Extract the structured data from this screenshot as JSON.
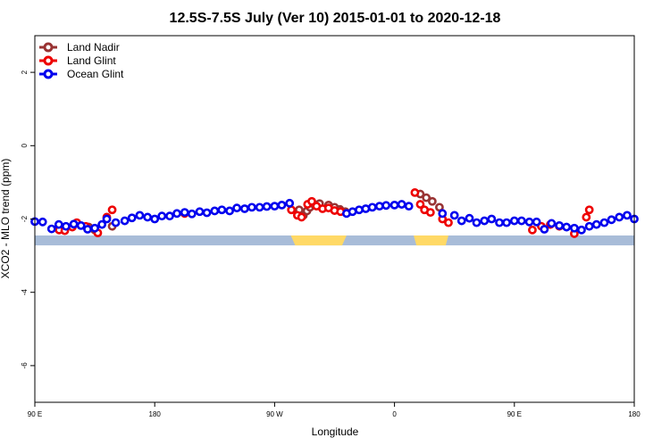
{
  "chart_data": {
    "type": "scatter",
    "title": "12.5S-7.5S July (Ver 10)   2015-01-01 to 2020-12-18",
    "xlabel": "Longitude",
    "ylabel": "XCO2 - MLO trend (ppm)",
    "xlim": [
      0,
      1
    ],
    "ylim": [
      -7,
      3
    ],
    "x_ticks": [
      {
        "pos": 0.0,
        "label": "90 E"
      },
      {
        "pos": 0.2,
        "label": "180"
      },
      {
        "pos": 0.4,
        "label": "90 W"
      },
      {
        "pos": 0.6,
        "label": "0"
      },
      {
        "pos": 0.8,
        "label": "90 E"
      },
      {
        "pos": 1.0,
        "label": "180"
      }
    ],
    "y_ticks": [
      {
        "value": 2,
        "label": "2"
      },
      {
        "value": 0,
        "label": "0"
      },
      {
        "value": -2,
        "label": "-2"
      },
      {
        "value": -4,
        "label": "-4"
      },
      {
        "value": -6,
        "label": "-6"
      }
    ],
    "legend": [
      {
        "name": "Land Nadir",
        "color": "#993333"
      },
      {
        "name": "Land Glint",
        "color": "#ee0000"
      },
      {
        "name": "Ocean Glint",
        "color": "#0000ee"
      }
    ],
    "map_strip": {
      "y_top": -2.45,
      "y_bottom": -2.72,
      "ocean_color": "#a8bcd8",
      "land_color": "#ffd966",
      "land_segments": [
        [
          0.427,
          0.52
        ],
        [
          0.632,
          0.69
        ]
      ]
    },
    "series": [
      {
        "name": "Land Nadir",
        "color": "#993333",
        "x": [
          0.441,
          0.448,
          0.454,
          0.459,
          0.467,
          0.475,
          0.49,
          0.5,
          0.509,
          0.518,
          0.643,
          0.653,
          0.663,
          0.675,
          0.09,
          0.1,
          0.129
        ],
        "y": [
          -1.75,
          -1.9,
          -1.78,
          -1.68,
          -1.62,
          -1.58,
          -1.62,
          -1.68,
          -1.74,
          -1.8,
          -1.32,
          -1.42,
          -1.52,
          -1.68,
          -2.22,
          -2.3,
          -2.2
        ]
      },
      {
        "name": "Land Glint",
        "color": "#ee0000",
        "x": [
          0.0406,
          0.05,
          0.0625,
          0.07,
          0.085,
          0.105,
          0.12,
          0.129,
          0.25,
          0.428,
          0.438,
          0.445,
          0.455,
          0.462,
          0.47,
          0.48,
          0.49,
          0.5,
          0.51,
          0.634,
          0.643,
          0.65,
          0.66,
          0.68,
          0.69,
          0.83,
          0.845,
          0.86,
          0.875,
          0.9,
          0.92,
          0.925
        ],
        "y": [
          -2.3,
          -2.32,
          -2.22,
          -2.1,
          -2.2,
          -2.38,
          -1.95,
          -1.75,
          -1.85,
          -1.75,
          -1.9,
          -1.95,
          -1.6,
          -1.52,
          -1.65,
          -1.72,
          -1.7,
          -1.77,
          -1.8,
          -1.28,
          -1.6,
          -1.75,
          -1.82,
          -2.0,
          -2.1,
          -2.3,
          -2.2,
          -2.15,
          -2.2,
          -2.4,
          -1.95,
          -1.75
        ]
      },
      {
        "name": "Ocean Glint",
        "color": "#0000ee",
        "x": [
          0.0,
          0.013,
          0.028,
          0.04,
          0.052,
          0.065,
          0.077,
          0.088,
          0.1,
          0.112,
          0.12,
          0.135,
          0.15,
          0.162,
          0.175,
          0.188,
          0.2,
          0.212,
          0.225,
          0.237,
          0.25,
          0.262,
          0.275,
          0.287,
          0.3,
          0.312,
          0.325,
          0.337,
          0.35,
          0.362,
          0.375,
          0.387,
          0.4,
          0.412,
          0.425,
          0.52,
          0.53,
          0.541,
          0.552,
          0.563,
          0.575,
          0.586,
          0.6,
          0.612,
          0.624,
          0.68,
          0.7,
          0.712,
          0.725,
          0.737,
          0.75,
          0.762,
          0.775,
          0.787,
          0.8,
          0.812,
          0.825,
          0.837,
          0.85,
          0.862,
          0.875,
          0.887,
          0.9,
          0.912,
          0.925,
          0.937,
          0.95,
          0.962,
          0.975,
          0.988,
          1.0
        ],
        "y": [
          -2.07,
          -2.08,
          -2.27,
          -2.15,
          -2.2,
          -2.14,
          -2.18,
          -2.28,
          -2.25,
          -2.15,
          -2.0,
          -2.1,
          -2.05,
          -1.97,
          -1.9,
          -1.95,
          -2.0,
          -1.92,
          -1.92,
          -1.85,
          -1.82,
          -1.86,
          -1.8,
          -1.83,
          -1.78,
          -1.75,
          -1.78,
          -1.7,
          -1.72,
          -1.68,
          -1.68,
          -1.66,
          -1.65,
          -1.62,
          -1.57,
          -1.85,
          -1.8,
          -1.75,
          -1.72,
          -1.68,
          -1.65,
          -1.63,
          -1.62,
          -1.6,
          -1.65,
          -1.85,
          -1.9,
          -2.05,
          -1.98,
          -2.1,
          -2.05,
          -2.0,
          -2.1,
          -2.1,
          -2.05,
          -2.05,
          -2.08,
          -2.08,
          -2.28,
          -2.12,
          -2.18,
          -2.22,
          -2.25,
          -2.3,
          -2.2,
          -2.15,
          -2.1,
          -2.02,
          -1.95,
          -1.9,
          -2.0
        ]
      }
    ]
  }
}
